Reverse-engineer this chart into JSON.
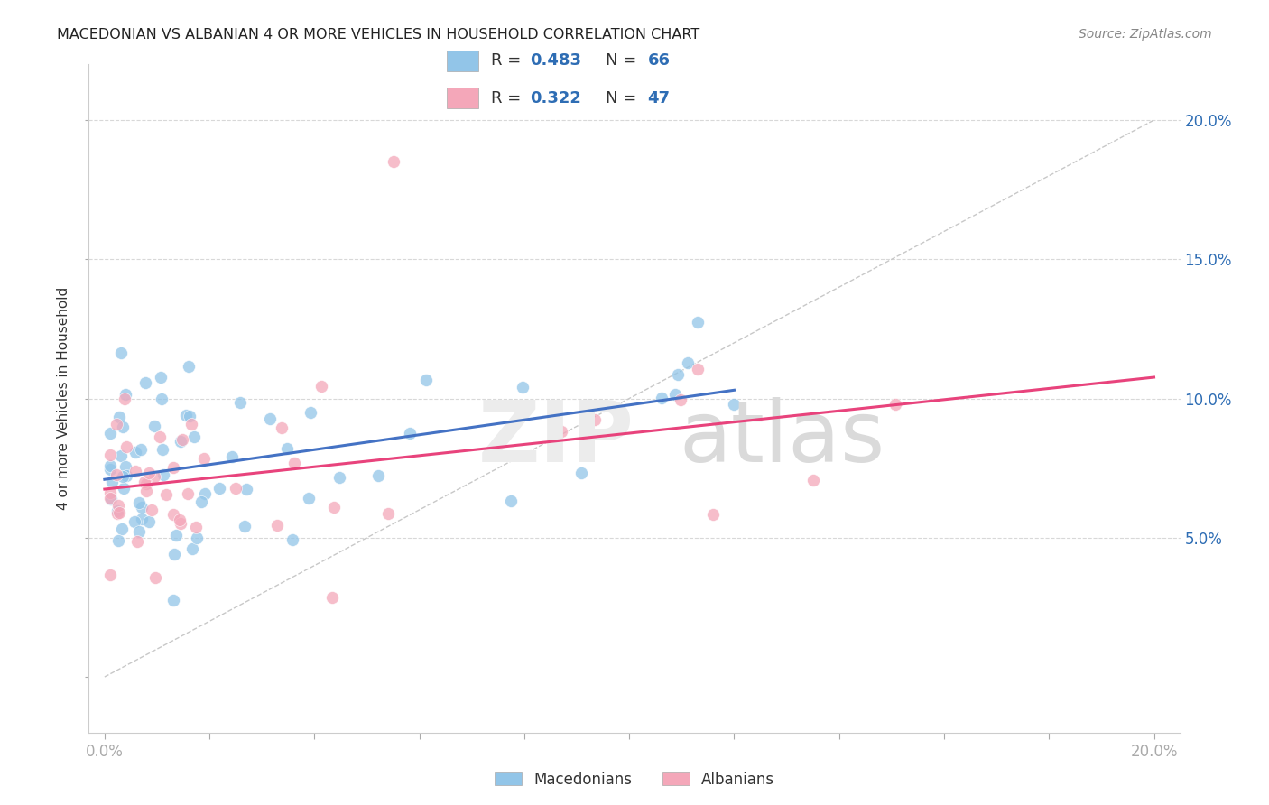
{
  "title": "MACEDONIAN VS ALBANIAN 4 OR MORE VEHICLES IN HOUSEHOLD CORRELATION CHART",
  "source": "Source: ZipAtlas.com",
  "ylabel": "4 or more Vehicles in Household",
  "xlim": [
    0.0,
    0.2
  ],
  "ylim": [
    -0.02,
    0.22
  ],
  "macedonian_R": 0.483,
  "macedonian_N": 66,
  "albanian_R": 0.322,
  "albanian_N": 47,
  "macedonian_color": "#92c5e8",
  "albanian_color": "#f4a7b9",
  "macedonian_line_color": "#4472c4",
  "albanian_line_color": "#e8437c",
  "diagonal_color": "#c8c8c8",
  "background_color": "#ffffff",
  "grid_color": "#d8d8d8",
  "text_color": "#333333",
  "blue_label_color": "#2e6db4",
  "right_axis_color": "#2e6db4",
  "legend_R_eq": "R = ",
  "legend_N_eq": "N = ",
  "mac_R_val": "0.483",
  "mac_N_val": "66",
  "alb_R_val": "0.322",
  "alb_N_val": "47",
  "watermark_zip": "ZIP",
  "watermark_atlas": "atlas",
  "bottom_legend_macedonians": "Macedonians",
  "bottom_legend_albanians": "Albanians"
}
